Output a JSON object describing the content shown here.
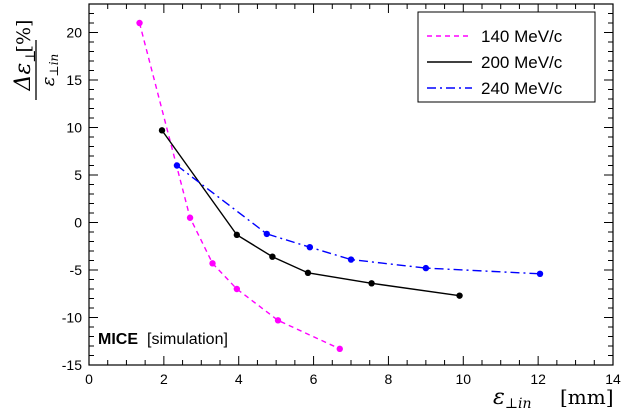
{
  "chart_data": {
    "type": "line",
    "title": "",
    "xlabel": {
      "symbol": "ε",
      "subscript": "⊥in",
      "unit": "[mm]"
    },
    "ylabel": {
      "numerator": "Δε",
      "numerator_sub": "⊥",
      "denominator": "ε",
      "denominator_sub": "⊥in",
      "unit": "[%]"
    },
    "xlim": [
      0,
      14
    ],
    "ylim": [
      -15,
      23
    ],
    "x_ticks": [
      0,
      2,
      4,
      6,
      8,
      10,
      12,
      14
    ],
    "y_ticks": [
      -15,
      -10,
      -5,
      0,
      5,
      10,
      15,
      20
    ],
    "grid": false,
    "legend_position": "top-right",
    "annotation": {
      "bold": "MICE",
      "normal": "[simulation]"
    },
    "series": [
      {
        "name": "140 MeV/c",
        "color": "#ff00ff",
        "dash": "dashed",
        "x": [
          1.35,
          2.7,
          3.3,
          3.95,
          5.05,
          6.7
        ],
        "y": [
          21.0,
          0.5,
          -4.3,
          -7.0,
          -10.3,
          -13.3
        ]
      },
      {
        "name": "200 MeV/c",
        "color": "#000000",
        "dash": "solid",
        "x": [
          1.95,
          3.95,
          4.9,
          5.85,
          7.55,
          9.9
        ],
        "y": [
          9.7,
          -1.3,
          -3.6,
          -5.3,
          -6.4,
          -7.7
        ]
      },
      {
        "name": "240 MeV/c",
        "color": "#0000ff",
        "dash": "dashdot",
        "x": [
          2.35,
          4.75,
          5.9,
          7.0,
          9.0,
          12.05
        ],
        "y": [
          6.0,
          -1.2,
          -2.6,
          -3.9,
          -4.8,
          -5.4
        ]
      }
    ]
  }
}
